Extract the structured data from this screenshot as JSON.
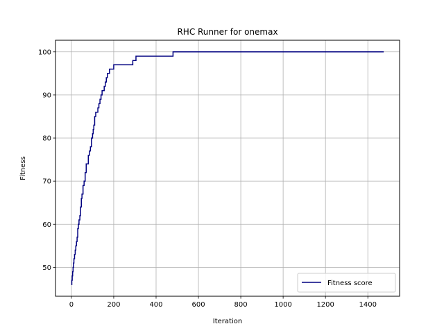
{
  "chart_data": {
    "type": "line",
    "title": "RHC Runner for onemax",
    "xlabel": "Iteration",
    "ylabel": "Fitness",
    "xlim": [
      -75,
      1550
    ],
    "ylim": [
      43.3,
      102.7
    ],
    "xticks": [
      0,
      200,
      400,
      600,
      800,
      1000,
      1200,
      1400
    ],
    "yticks": [
      50,
      60,
      70,
      80,
      90,
      100
    ],
    "grid": true,
    "legend_position": "lower-right",
    "step": "post",
    "series": [
      {
        "name": "Fitness score",
        "color": "#000080",
        "x": [
          0,
          2,
          4,
          6,
          8,
          10,
          12,
          15,
          18,
          21,
          24,
          27,
          30,
          33,
          36,
          40,
          43,
          47,
          50,
          55,
          60,
          65,
          70,
          80,
          85,
          90,
          95,
          100,
          103,
          106,
          110,
          115,
          125,
          130,
          135,
          140,
          145,
          155,
          160,
          165,
          170,
          180,
          200,
          250,
          290,
          300,
          305,
          480,
          1475
        ],
        "y": [
          46,
          47,
          48,
          49,
          50,
          51,
          52,
          53,
          54,
          55,
          56,
          57,
          59,
          60,
          61,
          62,
          64,
          66,
          67,
          69,
          70,
          72,
          74,
          76,
          77,
          78,
          80,
          81,
          82,
          83,
          85,
          86,
          87,
          88,
          89,
          90,
          91,
          92,
          93,
          94,
          95,
          96,
          97,
          97,
          98,
          98,
          99,
          100,
          100
        ]
      }
    ]
  }
}
